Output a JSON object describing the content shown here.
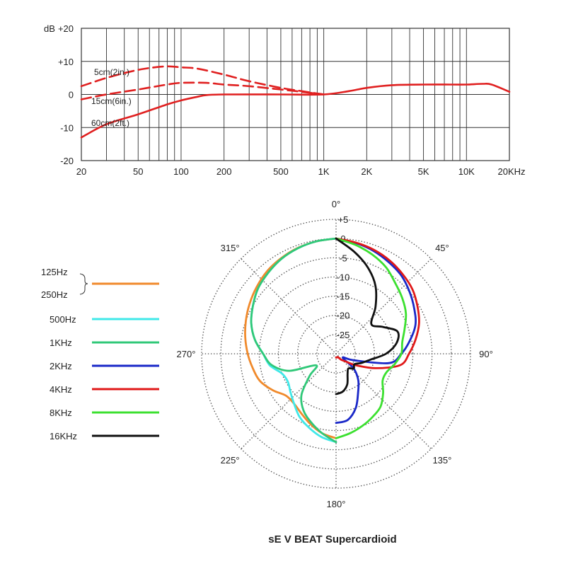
{
  "colors": {
    "response": "#e02020",
    "grid": "#333333",
    "polar_grid": "#555555"
  },
  "chart_data": [
    {
      "type": "line",
      "title": "",
      "xlabel": "",
      "ylabel": "dB",
      "x_scale": "log",
      "xlim": [
        20,
        20000
      ],
      "ylim": [
        -20,
        20
      ],
      "x_ticks": [
        {
          "v": 20,
          "label": "20"
        },
        {
          "v": 50,
          "label": "50"
        },
        {
          "v": 100,
          "label": "100"
        },
        {
          "v": 200,
          "label": "200"
        },
        {
          "v": 500,
          "label": "500"
        },
        {
          "v": 1000,
          "label": "1K"
        },
        {
          "v": 2000,
          "label": "2K"
        },
        {
          "v": 5000,
          "label": "5K"
        },
        {
          "v": 10000,
          "label": "10K"
        },
        {
          "v": 20000,
          "label": "20KHz"
        }
      ],
      "y_ticks": [
        {
          "v": 20,
          "label": "+20"
        },
        {
          "v": 10,
          "label": "+10"
        },
        {
          "v": 0,
          "label": "0"
        },
        {
          "v": -10,
          "label": "-10"
        },
        {
          "v": -20,
          "label": "-20"
        }
      ],
      "grid": true,
      "series": [
        {
          "name": "5cm(2in.)",
          "style": "dashed",
          "points": [
            [
              20,
              2.5
            ],
            [
              30,
              5
            ],
            [
              45,
              7
            ],
            [
              60,
              8
            ],
            [
              80,
              8.5
            ],
            [
              100,
              8.2
            ],
            [
              130,
              7.8
            ],
            [
              200,
              6
            ],
            [
              300,
              4
            ],
            [
              500,
              2
            ],
            [
              700,
              1
            ],
            [
              1000,
              0
            ]
          ]
        },
        {
          "name": "15cm(6in.)",
          "style": "dashed",
          "points": [
            [
              20,
              -1.5
            ],
            [
              30,
              0
            ],
            [
              50,
              1.5
            ],
            [
              80,
              3
            ],
            [
              100,
              3.5
            ],
            [
              150,
              3.5
            ],
            [
              200,
              3
            ],
            [
              300,
              2.5
            ],
            [
              500,
              1.5
            ],
            [
              700,
              0.8
            ],
            [
              1000,
              0
            ]
          ]
        },
        {
          "name": "60cm(2ft.)",
          "style": "solid",
          "points": [
            [
              20,
              -13
            ],
            [
              30,
              -9
            ],
            [
              50,
              -6
            ],
            [
              80,
              -3
            ],
            [
              100,
              -1.8
            ],
            [
              130,
              -0.7
            ],
            [
              150,
              -0.2
            ],
            [
              200,
              0
            ],
            [
              500,
              0
            ],
            [
              1000,
              0
            ],
            [
              1500,
              1
            ],
            [
              2000,
              2
            ],
            [
              3000,
              2.8
            ],
            [
              5000,
              3
            ],
            [
              8000,
              3
            ],
            [
              10000,
              3
            ],
            [
              13000,
              3.2
            ],
            [
              15000,
              3
            ],
            [
              20000,
              0.8
            ]
          ]
        }
      ],
      "annotations": [
        "5cm(2in.)",
        "15cm(6in.)",
        "60cm(2ft.)"
      ]
    },
    {
      "type": "polar",
      "title": "sE V BEAT Supercardioid",
      "r_range": [
        -30,
        5
      ],
      "r_ticks": [
        {
          "v": 5,
          "label": "+5"
        },
        {
          "v": 0,
          "label": "0"
        },
        {
          "v": -5,
          "label": "-5"
        },
        {
          "v": -10,
          "label": "-10"
        },
        {
          "v": -15,
          "label": "-15"
        },
        {
          "v": -20,
          "label": "-20"
        },
        {
          "v": -25,
          "label": "-25"
        }
      ],
      "angle_labels": [
        "0°",
        "45°",
        "90°",
        "135°",
        "180°",
        "225°",
        "270°",
        "315°"
      ],
      "grid": true,
      "legend": {
        "position": "left",
        "entries": [
          {
            "label_top": "125Hz",
            "label_bottom": "250Hz",
            "color": "#f08a2c"
          },
          {
            "label": "500Hz",
            "color": "#40e8e8"
          },
          {
            "label": "1KHz",
            "color": "#30c878"
          },
          {
            "label": "2KHz",
            "color": "#1a28c8"
          },
          {
            "label": "4KHz",
            "color": "#e01818"
          },
          {
            "label": "8KHz",
            "color": "#3ce030"
          },
          {
            "label": "16KHz",
            "color": "#101010"
          }
        ]
      },
      "series": [
        {
          "name": "125Hz / 250Hz",
          "color": "#f08a2c",
          "side": "left",
          "points": [
            [
              0,
              0
            ],
            [
              10,
              -0.3
            ],
            [
              20,
              -0.7
            ],
            [
              30,
              -1.3
            ],
            [
              40,
              -2
            ],
            [
              50,
              -3
            ],
            [
              60,
              -4
            ],
            [
              70,
              -5
            ],
            [
              80,
              -6
            ],
            [
              90,
              -7
            ],
            [
              100,
              -8
            ],
            [
              110,
              -9
            ],
            [
              120,
              -11
            ],
            [
              130,
              -13
            ],
            [
              140,
              -13
            ],
            [
              150,
              -12
            ],
            [
              160,
              -10.5
            ],
            [
              170,
              -9
            ],
            [
              180,
              -8
            ]
          ]
        },
        {
          "name": "500Hz",
          "color": "#40e8e8",
          "side": "left",
          "points": [
            [
              0,
              0
            ],
            [
              10,
              -0.3
            ],
            [
              20,
              -0.8
            ],
            [
              30,
              -1.5
            ],
            [
              40,
              -2.5
            ],
            [
              50,
              -3.5
            ],
            [
              60,
              -5
            ],
            [
              70,
              -6.5
            ],
            [
              80,
              -8.5
            ],
            [
              90,
              -11
            ],
            [
              100,
              -12.5
            ],
            [
              110,
              -15
            ],
            [
              120,
              -15.5
            ],
            [
              130,
              -14.5
            ],
            [
              140,
              -13
            ],
            [
              150,
              -11
            ],
            [
              160,
              -9.5
            ],
            [
              170,
              -8
            ],
            [
              180,
              -7
            ]
          ]
        },
        {
          "name": "1KHz",
          "color": "#30c878",
          "side": "left",
          "points": [
            [
              0,
              0
            ],
            [
              10,
              -0.3
            ],
            [
              20,
              -0.8
            ],
            [
              30,
              -1.5
            ],
            [
              40,
              -2.5
            ],
            [
              50,
              -3.5
            ],
            [
              60,
              -5
            ],
            [
              70,
              -6.5
            ],
            [
              80,
              -8.5
            ],
            [
              90,
              -11
            ],
            [
              100,
              -13
            ],
            [
              110,
              -17
            ],
            [
              120,
              -24
            ],
            [
              130,
              -21
            ],
            [
              140,
              -16
            ],
            [
              150,
              -13
            ],
            [
              160,
              -11
            ],
            [
              170,
              -9
            ],
            [
              180,
              -7
            ]
          ]
        },
        {
          "name": "2KHz",
          "color": "#1a28c8",
          "side": "right",
          "points": [
            [
              0,
              0
            ],
            [
              10,
              -0.7
            ],
            [
              20,
              -1.5
            ],
            [
              30,
              -2.5
            ],
            [
              40,
              -3.5
            ],
            [
              50,
              -5
            ],
            [
              60,
              -6.5
            ],
            [
              70,
              -8
            ],
            [
              80,
              -10.5
            ],
            [
              90,
              -13
            ],
            [
              100,
              -16
            ],
            [
              110,
              -25
            ],
            [
              120,
              -28
            ],
            [
              130,
              -24
            ],
            [
              140,
              -21
            ],
            [
              150,
              -18.5
            ],
            [
              160,
              -15
            ],
            [
              170,
              -12.5
            ],
            [
              180,
              -12
            ]
          ]
        },
        {
          "name": "4KHz",
          "color": "#e01818",
          "side": "right",
          "points": [
            [
              0,
              0
            ],
            [
              10,
              -0.6
            ],
            [
              20,
              -1.2
            ],
            [
              30,
              -2
            ],
            [
              40,
              -3
            ],
            [
              50,
              -4
            ],
            [
              60,
              -5.5
            ],
            [
              70,
              -7
            ],
            [
              80,
              -9
            ],
            [
              90,
              -11
            ],
            [
              100,
              -13
            ],
            [
              110,
              -19
            ],
            [
              120,
              -24
            ],
            [
              130,
              -27
            ],
            [
              140,
              -28
            ],
            [
              150,
              -29
            ],
            [
              160,
              -29
            ],
            [
              170,
              -29
            ],
            [
              180,
              -29
            ]
          ]
        },
        {
          "name": "8KHz",
          "color": "#3ce030",
          "side": "right",
          "points": [
            [
              0,
              0
            ],
            [
              10,
              -1.2
            ],
            [
              20,
              -2.5
            ],
            [
              30,
              -4
            ],
            [
              40,
              -6
            ],
            [
              50,
              -7.5
            ],
            [
              60,
              -9
            ],
            [
              70,
              -11
            ],
            [
              80,
              -12.5
            ],
            [
              90,
              -13
            ],
            [
              100,
              -14.5
            ],
            [
              110,
              -16
            ],
            [
              120,
              -16
            ],
            [
              130,
              -14
            ],
            [
              140,
              -12
            ],
            [
              150,
              -11
            ],
            [
              160,
              -10
            ],
            [
              170,
              -9
            ],
            [
              180,
              -8
            ]
          ]
        },
        {
          "name": "16KHz",
          "color": "#101010",
          "side": "right",
          "points": [
            [
              0,
              0
            ],
            [
              10,
              -3
            ],
            [
              20,
              -6
            ],
            [
              30,
              -9.5
            ],
            [
              40,
              -14
            ],
            [
              50,
              -18
            ],
            [
              60,
              -16
            ],
            [
              70,
              -13
            ],
            [
              80,
              -14
            ],
            [
              90,
              -17
            ],
            [
              100,
              -21
            ],
            [
              110,
              -23
            ],
            [
              120,
              -24.5
            ],
            [
              130,
              -24
            ],
            [
              140,
              -25
            ],
            [
              150,
              -24
            ],
            [
              160,
              -21.5
            ],
            [
              170,
              -20
            ],
            [
              180,
              -19.5
            ]
          ]
        }
      ]
    }
  ]
}
